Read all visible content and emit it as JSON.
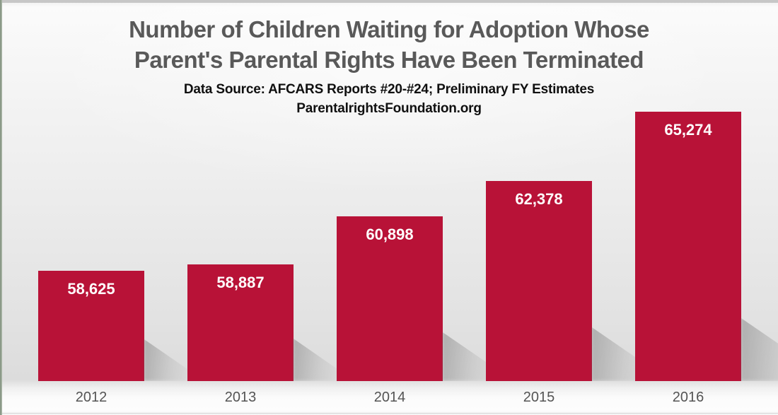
{
  "title": {
    "line1": "Number of Children Waiting for Adoption Whose",
    "line2": "Parent's Parental Rights Have Been Terminated"
  },
  "subtitle": {
    "line1": "Data Source: AFCARS Reports #20-#24; Preliminary FY Estimates",
    "line2": "ParentalrightsFoundation.org"
  },
  "chart_data": {
    "type": "bar",
    "title": "Number of Children Waiting for Adoption Whose Parent's Parental Rights Have Been Terminated",
    "subtitle": "Data Source: AFCARS Reports #20-#24; Preliminary FY Estimates ParentalrightsFoundation.org",
    "categories": [
      "2012",
      "2013",
      "2014",
      "2015",
      "2016"
    ],
    "values": [
      58625,
      58887,
      60898,
      62378,
      65274
    ],
    "value_labels": [
      "58,625",
      "58,887",
      "60,898",
      "62,378",
      "65,274"
    ],
    "xlabel": "",
    "ylabel": "",
    "ylim": [
      54000,
      66000
    ],
    "grid": false,
    "legend": false,
    "bar_color": "#B81237",
    "value_label_color": "#FFFFFF",
    "axis_label_color": "#545454",
    "title_color": "#595959",
    "layout_hint": "value labels inside bar tops, year labels below bars, no visible axes or gridlines"
  }
}
